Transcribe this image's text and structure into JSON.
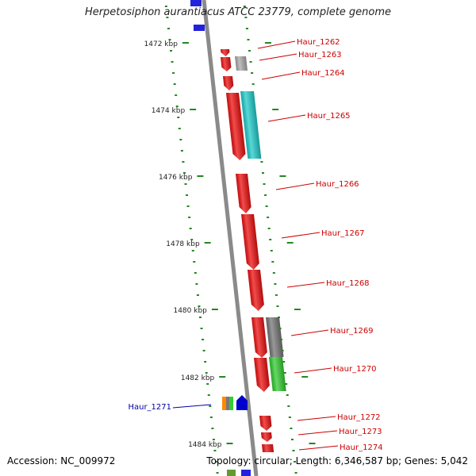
{
  "title": "Herpetosiphon aurantiacus ATCC 23779, complete genome",
  "footer": {
    "accession": "Accession: NC_009972",
    "topology": "Topology: circular; Length: 6,346,587 bp; Genes: 5,042"
  },
  "kbp_labels": [
    "1472 kbp",
    "1474 kbp",
    "1476 kbp",
    "1478 kbp",
    "1480 kbp",
    "1482 kbp",
    "1484 kbp"
  ],
  "genes": [
    {
      "name": "Haur_1262",
      "color": "#ee1111"
    },
    {
      "name": "Haur_1263",
      "color": "#aaaaaa"
    },
    {
      "name": "Haur_1264",
      "color": "#ee1111"
    },
    {
      "name": "Haur_1265",
      "color": "#22cccc"
    },
    {
      "name": "Haur_1266",
      "color": "#ee1111"
    },
    {
      "name": "Haur_1267",
      "color": "#ee1111"
    },
    {
      "name": "Haur_1268",
      "color": "#ee1111"
    },
    {
      "name": "Haur_1269",
      "color": "#777777"
    },
    {
      "name": "Haur_1270",
      "color": "#33cc33"
    },
    {
      "name": "Haur_1271",
      "color": "#0000cc"
    },
    {
      "name": "Haur_1272",
      "color": "#ee1111"
    },
    {
      "name": "Haur_1273",
      "color": "#ee1111"
    },
    {
      "name": "Haur_1274",
      "color": "#ee1111"
    }
  ],
  "colors": {
    "label_forward": "#cc0000",
    "label_reverse": "#0000aa",
    "tick": "#228822",
    "backbone": "#888888"
  }
}
